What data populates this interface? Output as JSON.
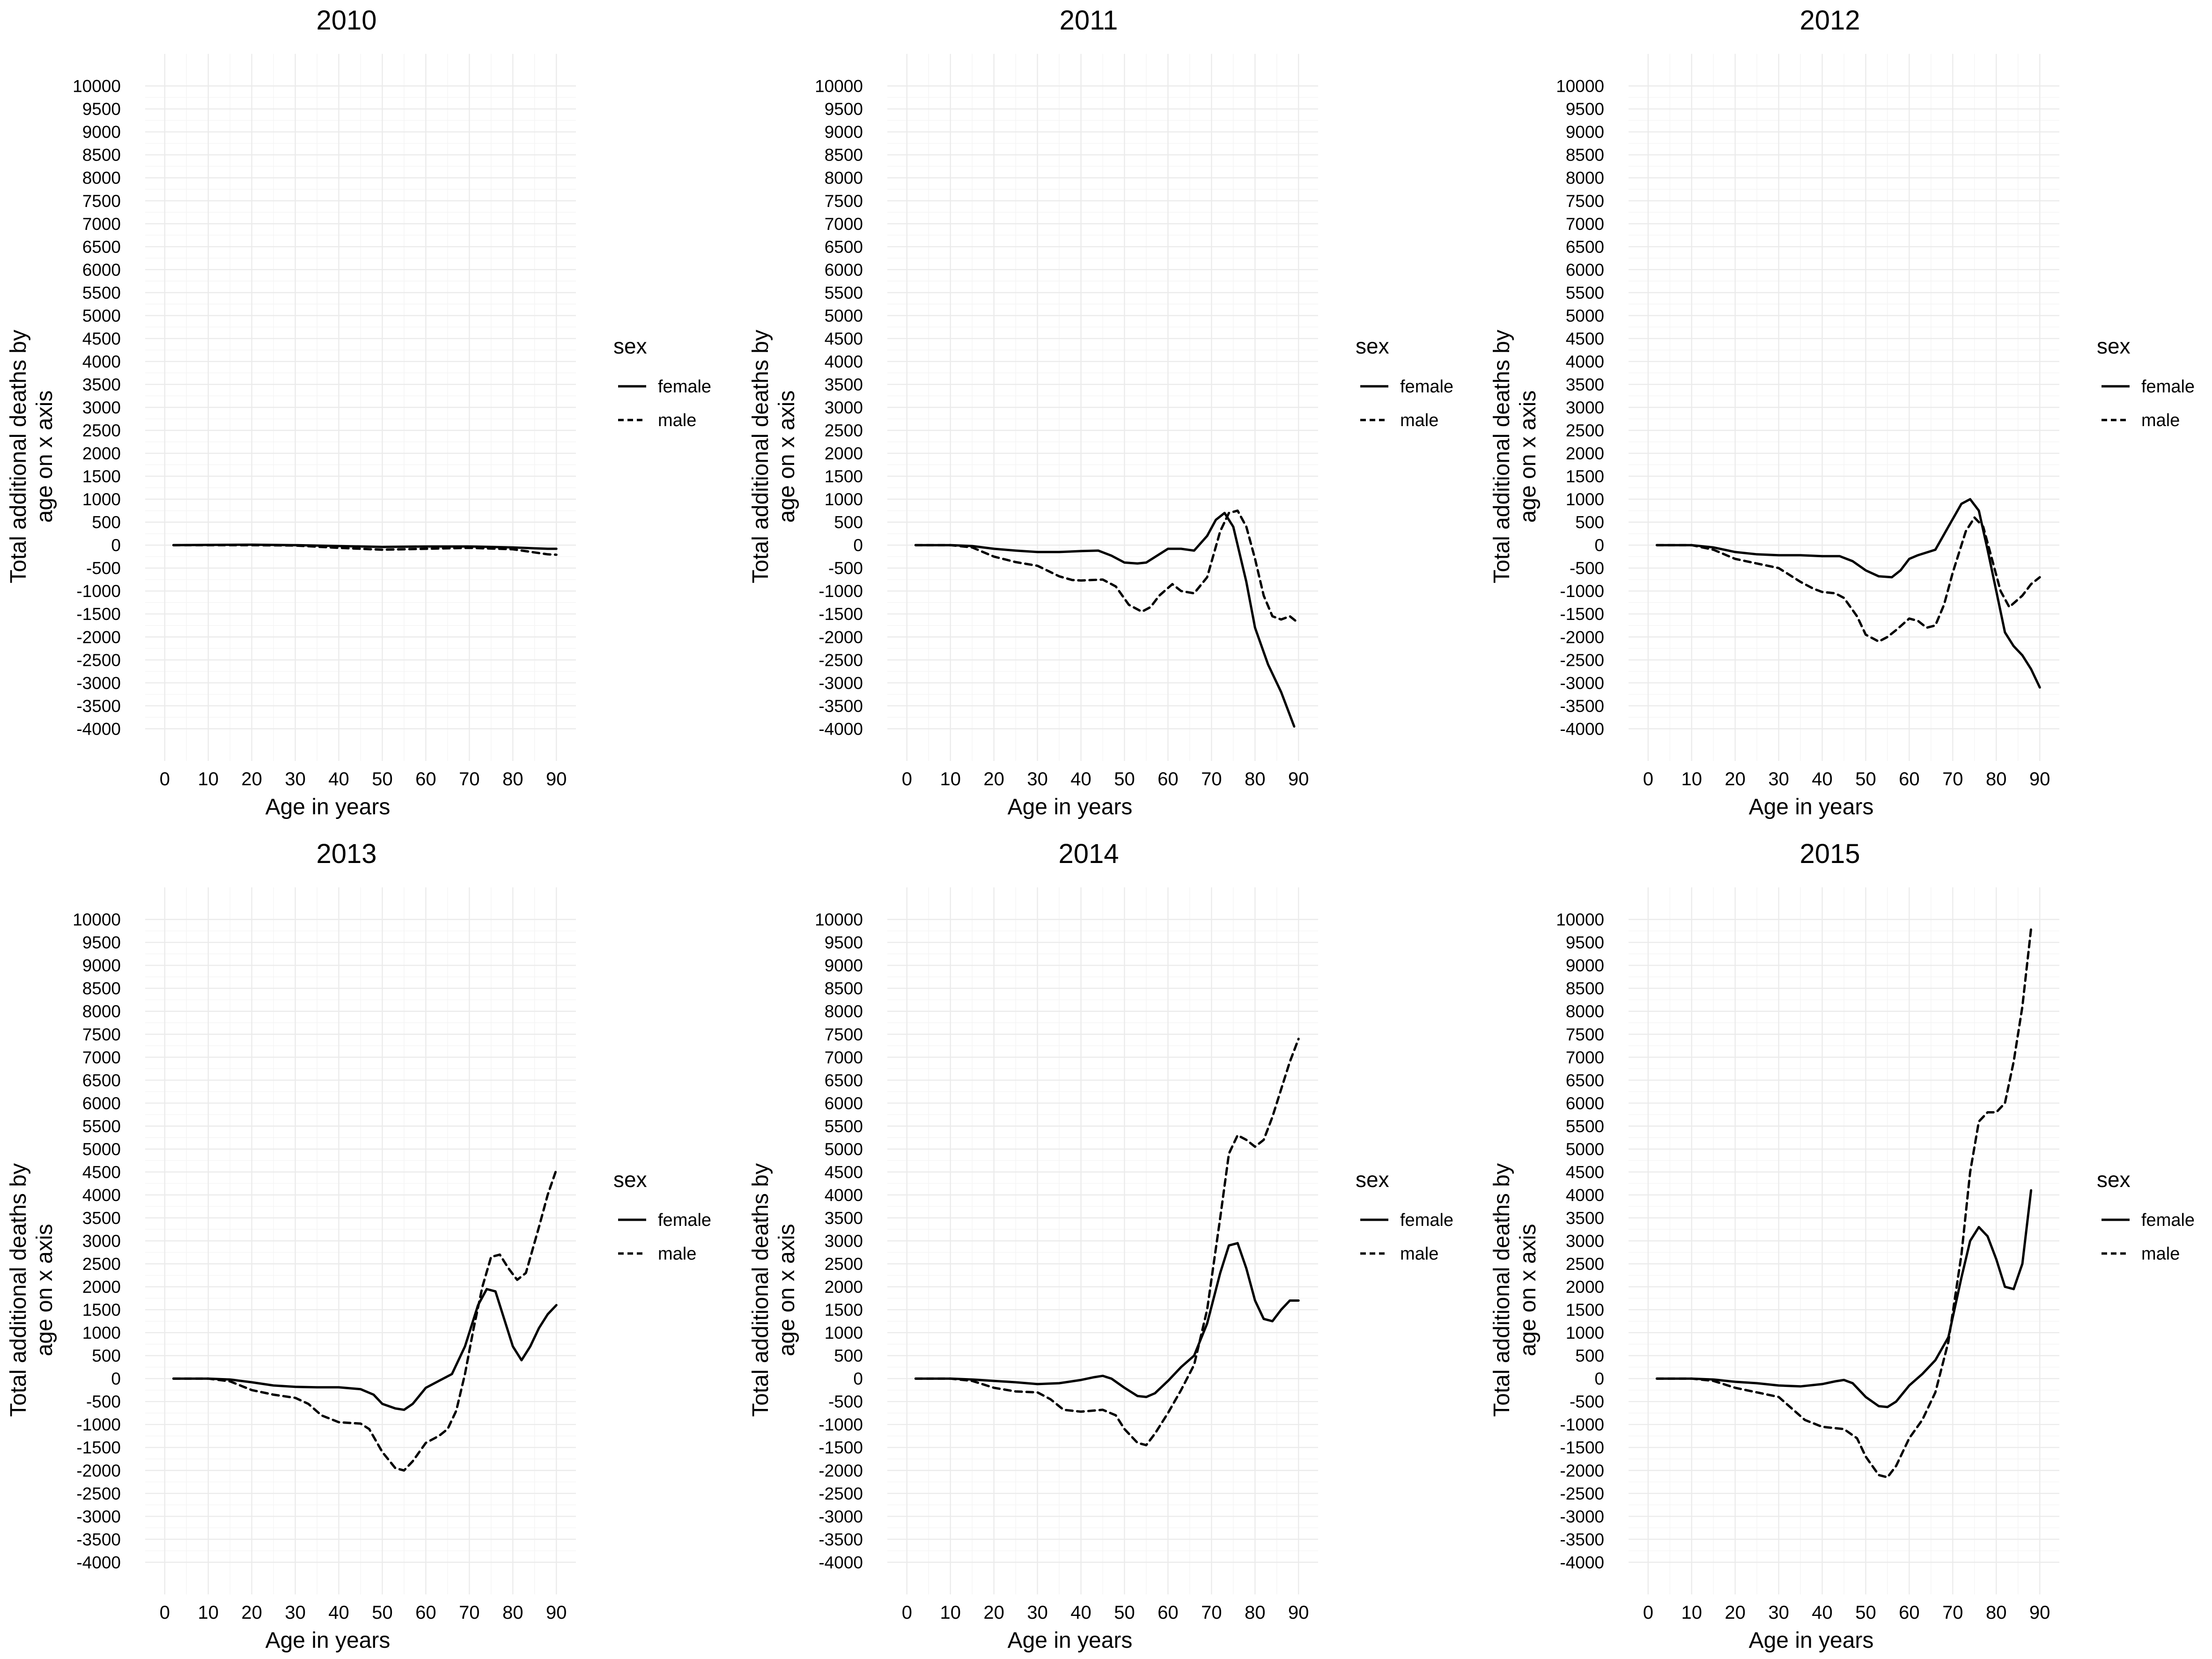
{
  "chart_data": [
    {
      "type": "line",
      "title": "2010",
      "xlabel": "Age in years",
      "ylabel": "Total additional deaths by age on x axis",
      "xlim": [
        0,
        90
      ],
      "ylim": [
        -4000,
        10000
      ],
      "x_ticks": [
        0,
        10,
        20,
        30,
        40,
        50,
        60,
        70,
        80,
        90
      ],
      "y_ticks": [
        -4000,
        -3500,
        -3000,
        -2500,
        -2000,
        -1500,
        -1000,
        -500,
        0,
        500,
        1000,
        1500,
        2000,
        2500,
        3000,
        3500,
        4000,
        4500,
        5000,
        5500,
        6000,
        6500,
        7000,
        7500,
        8000,
        8500,
        9000,
        9500,
        10000
      ],
      "grid": true,
      "legend": {
        "title": "sex",
        "position": "right"
      },
      "series": [
        {
          "name": "female",
          "line_style": "solid",
          "x": [
            2,
            10,
            20,
            30,
            40,
            50,
            60,
            70,
            80,
            85,
            88,
            90
          ],
          "y": [
            0,
            5,
            10,
            0,
            -20,
            -40,
            -30,
            -30,
            -50,
            -70,
            -80,
            -80
          ]
        },
        {
          "name": "male",
          "line_style": "dashed",
          "x": [
            2,
            10,
            20,
            30,
            40,
            50,
            60,
            70,
            80,
            85,
            88,
            90
          ],
          "y": [
            0,
            0,
            0,
            -10,
            -60,
            -100,
            -80,
            -60,
            -90,
            -160,
            -200,
            -210
          ]
        }
      ]
    },
    {
      "type": "line",
      "title": "2011",
      "xlabel": "Age in years",
      "ylabel": "Total additional deaths by age on x axis",
      "xlim": [
        0,
        90
      ],
      "ylim": [
        -4000,
        10000
      ],
      "x_ticks": [
        0,
        10,
        20,
        30,
        40,
        50,
        60,
        70,
        80,
        90
      ],
      "y_ticks": [
        -4000,
        -3500,
        -3000,
        -2500,
        -2000,
        -1500,
        -1000,
        -500,
        0,
        500,
        1000,
        1500,
        2000,
        2500,
        3000,
        3500,
        4000,
        4500,
        5000,
        5500,
        6000,
        6500,
        7000,
        7500,
        8000,
        8500,
        9000,
        9500,
        10000
      ],
      "grid": true,
      "legend": {
        "title": "sex",
        "position": "right"
      },
      "series": [
        {
          "name": "female",
          "line_style": "solid",
          "x": [
            2,
            10,
            15,
            20,
            25,
            30,
            35,
            40,
            44,
            47,
            50,
            53,
            55,
            58,
            60,
            63,
            66,
            69,
            71,
            73,
            75,
            78,
            80,
            83,
            86,
            88,
            89
          ],
          "y": [
            0,
            0,
            -20,
            -80,
            -120,
            -150,
            -150,
            -130,
            -120,
            -230,
            -380,
            -400,
            -380,
            -200,
            -80,
            -80,
            -120,
            200,
            550,
            700,
            400,
            -800,
            -1800,
            -2600,
            -3200,
            -3700,
            -3950
          ]
        },
        {
          "name": "male",
          "line_style": "dashed",
          "x": [
            2,
            10,
            15,
            20,
            25,
            30,
            35,
            38,
            40,
            45,
            48,
            51,
            54,
            56,
            58,
            61,
            63,
            66,
            69,
            72,
            74,
            76,
            78,
            80,
            82,
            84,
            86,
            88,
            90
          ],
          "y": [
            0,
            0,
            -50,
            -250,
            -370,
            -450,
            -680,
            -760,
            -770,
            -750,
            -900,
            -1300,
            -1450,
            -1350,
            -1100,
            -850,
            -1000,
            -1050,
            -700,
            300,
            700,
            750,
            400,
            -300,
            -1100,
            -1550,
            -1620,
            -1550,
            -1700
          ]
        }
      ]
    },
    {
      "type": "line",
      "title": "2012",
      "xlabel": "Age in years",
      "ylabel": "Total additional deaths by age on x axis",
      "xlim": [
        0,
        90
      ],
      "ylim": [
        -4000,
        10000
      ],
      "x_ticks": [
        0,
        10,
        20,
        30,
        40,
        50,
        60,
        70,
        80,
        90
      ],
      "y_ticks": [
        -4000,
        -3500,
        -3000,
        -2500,
        -2000,
        -1500,
        -1000,
        -500,
        0,
        500,
        1000,
        1500,
        2000,
        2500,
        3000,
        3500,
        4000,
        4500,
        5000,
        5500,
        6000,
        6500,
        7000,
        7500,
        8000,
        8500,
        9000,
        9500,
        10000
      ],
      "grid": true,
      "legend": {
        "title": "sex",
        "position": "right"
      },
      "series": [
        {
          "name": "female",
          "line_style": "solid",
          "x": [
            2,
            10,
            15,
            20,
            25,
            30,
            35,
            40,
            44,
            47,
            50,
            53,
            56,
            58,
            60,
            62,
            66,
            69,
            72,
            74,
            76,
            78,
            80,
            82,
            84,
            86,
            88,
            90
          ],
          "y": [
            0,
            0,
            -50,
            -150,
            -200,
            -220,
            -220,
            -240,
            -240,
            -350,
            -550,
            -680,
            -700,
            -550,
            -300,
            -220,
            -100,
            400,
            900,
            1000,
            750,
            -100,
            -1000,
            -1900,
            -2200,
            -2400,
            -2700,
            -3100
          ]
        },
        {
          "name": "male",
          "line_style": "dashed",
          "x": [
            2,
            10,
            15,
            20,
            25,
            30,
            35,
            38,
            40,
            43,
            45,
            48,
            50,
            53,
            55,
            57,
            60,
            62,
            64,
            66,
            68,
            70,
            73,
            75,
            77,
            79,
            81,
            83,
            86,
            88,
            90
          ],
          "y": [
            0,
            0,
            -100,
            -300,
            -400,
            -500,
            -800,
            -950,
            -1020,
            -1050,
            -1150,
            -1550,
            -1950,
            -2100,
            -2000,
            -1850,
            -1600,
            -1650,
            -1800,
            -1750,
            -1300,
            -600,
            300,
            600,
            400,
            -300,
            -1000,
            -1350,
            -1100,
            -850,
            -700
          ]
        }
      ]
    },
    {
      "type": "line",
      "title": "2013",
      "xlabel": "Age in years",
      "ylabel": "Total additional deaths by age on x axis",
      "xlim": [
        0,
        90
      ],
      "ylim": [
        -4000,
        10000
      ],
      "x_ticks": [
        0,
        10,
        20,
        30,
        40,
        50,
        60,
        70,
        80,
        90
      ],
      "y_ticks": [
        -4000,
        -3500,
        -3000,
        -2500,
        -2000,
        -1500,
        -1000,
        -500,
        0,
        500,
        1000,
        1500,
        2000,
        2500,
        3000,
        3500,
        4000,
        4500,
        5000,
        5500,
        6000,
        6500,
        7000,
        7500,
        8000,
        8500,
        9000,
        9500,
        10000
      ],
      "grid": true,
      "legend": {
        "title": "sex",
        "position": "right"
      },
      "series": [
        {
          "name": "female",
          "line_style": "solid",
          "x": [
            2,
            10,
            15,
            20,
            25,
            30,
            35,
            40,
            45,
            48,
            50,
            53,
            55,
            57,
            60,
            63,
            66,
            69,
            72,
            74,
            76,
            78,
            80,
            82,
            84,
            86,
            88,
            90
          ],
          "y": [
            0,
            0,
            -20,
            -80,
            -150,
            -180,
            -190,
            -190,
            -230,
            -350,
            -550,
            -650,
            -680,
            -550,
            -200,
            -50,
            100,
            700,
            1600,
            1950,
            1900,
            1300,
            700,
            400,
            700,
            1100,
            1400,
            1600
          ]
        },
        {
          "name": "male",
          "line_style": "dashed",
          "x": [
            2,
            10,
            15,
            20,
            25,
            30,
            33,
            36,
            40,
            45,
            47,
            50,
            53,
            55,
            57,
            60,
            63,
            65,
            67,
            69,
            71,
            73,
            75,
            77,
            79,
            81,
            83,
            86,
            88,
            90
          ],
          "y": [
            0,
            0,
            -60,
            -250,
            -350,
            -420,
            -550,
            -800,
            -950,
            -980,
            -1100,
            -1600,
            -1950,
            -2000,
            -1800,
            -1400,
            -1250,
            -1100,
            -700,
            100,
            1100,
            2000,
            2650,
            2700,
            2400,
            2150,
            2300,
            3300,
            4000,
            4550
          ]
        }
      ]
    },
    {
      "type": "line",
      "title": "2014",
      "xlabel": "Age in years",
      "ylabel": "Total additional deaths by age on x axis",
      "xlim": [
        0,
        90
      ],
      "ylim": [
        -4000,
        10000
      ],
      "x_ticks": [
        0,
        10,
        20,
        30,
        40,
        50,
        60,
        70,
        80,
        90
      ],
      "y_ticks": [
        -4000,
        -3500,
        -3000,
        -2500,
        -2000,
        -1500,
        -1000,
        -500,
        0,
        500,
        1000,
        1500,
        2000,
        2500,
        3000,
        3500,
        4000,
        4500,
        5000,
        5500,
        6000,
        6500,
        7000,
        7500,
        8000,
        8500,
        9000,
        9500,
        10000
      ],
      "grid": true,
      "legend": {
        "title": "sex",
        "position": "right"
      },
      "series": [
        {
          "name": "female",
          "line_style": "solid",
          "x": [
            2,
            10,
            15,
            20,
            25,
            30,
            35,
            40,
            43,
            45,
            47,
            50,
            53,
            55,
            57,
            60,
            63,
            66,
            69,
            72,
            74,
            76,
            78,
            80,
            82,
            84,
            86,
            88,
            90
          ],
          "y": [
            0,
            0,
            -20,
            -50,
            -80,
            -120,
            -100,
            -30,
            30,
            60,
            0,
            -200,
            -380,
            -400,
            -320,
            -50,
            250,
            500,
            1200,
            2300,
            2900,
            2950,
            2400,
            1700,
            1300,
            1250,
            1500,
            1700,
            1700
          ]
        },
        {
          "name": "male",
          "line_style": "dashed",
          "x": [
            2,
            10,
            15,
            20,
            25,
            30,
            33,
            36,
            40,
            45,
            48,
            50,
            53,
            55,
            57,
            60,
            63,
            66,
            69,
            72,
            74,
            76,
            78,
            80,
            82,
            84,
            86,
            88,
            90
          ],
          "y": [
            0,
            0,
            -50,
            -200,
            -280,
            -300,
            -450,
            -680,
            -720,
            -680,
            -800,
            -1100,
            -1400,
            -1450,
            -1200,
            -750,
            -250,
            300,
            1500,
            3500,
            4900,
            5300,
            5200,
            5050,
            5200,
            5700,
            6300,
            6900,
            7400
          ]
        }
      ]
    },
    {
      "type": "line",
      "title": "2015",
      "xlabel": "Age in years",
      "ylabel": "Total additional deaths by age on x axis",
      "xlim": [
        0,
        90
      ],
      "ylim": [
        -4000,
        10000
      ],
      "x_ticks": [
        0,
        10,
        20,
        30,
        40,
        50,
        60,
        70,
        80,
        90
      ],
      "y_ticks": [
        -4000,
        -3500,
        -3000,
        -2500,
        -2000,
        -1500,
        -1000,
        -500,
        0,
        500,
        1000,
        1500,
        2000,
        2500,
        3000,
        3500,
        4000,
        4500,
        5000,
        5500,
        6000,
        6500,
        7000,
        7500,
        8000,
        8500,
        9000,
        9500,
        10000
      ],
      "grid": true,
      "legend": {
        "title": "sex",
        "position": "right"
      },
      "series": [
        {
          "name": "female",
          "line_style": "solid",
          "x": [
            2,
            10,
            15,
            20,
            25,
            30,
            35,
            40,
            43,
            45,
            47,
            50,
            53,
            55,
            57,
            60,
            63,
            66,
            69,
            72,
            74,
            76,
            78,
            80,
            82,
            84,
            86,
            88
          ],
          "y": [
            0,
            0,
            -20,
            -70,
            -100,
            -150,
            -170,
            -120,
            -60,
            -30,
            -100,
            -400,
            -600,
            -620,
            -500,
            -150,
            100,
            400,
            900,
            2200,
            3000,
            3300,
            3100,
            2600,
            2000,
            1950,
            2500,
            4100
          ]
        },
        {
          "name": "male",
          "line_style": "dashed",
          "x": [
            2,
            10,
            15,
            20,
            25,
            30,
            33,
            36,
            40,
            45,
            48,
            50,
            53,
            55,
            57,
            60,
            63,
            66,
            69,
            72,
            74,
            76,
            78,
            80,
            82,
            84,
            86,
            88
          ],
          "y": [
            0,
            0,
            -50,
            -200,
            -300,
            -400,
            -650,
            -900,
            -1050,
            -1100,
            -1300,
            -1700,
            -2100,
            -2150,
            -1900,
            -1300,
            -900,
            -300,
            800,
            2700,
            4500,
            5600,
            5800,
            5800,
            6000,
            6900,
            8100,
            9800
          ]
        }
      ]
    }
  ]
}
